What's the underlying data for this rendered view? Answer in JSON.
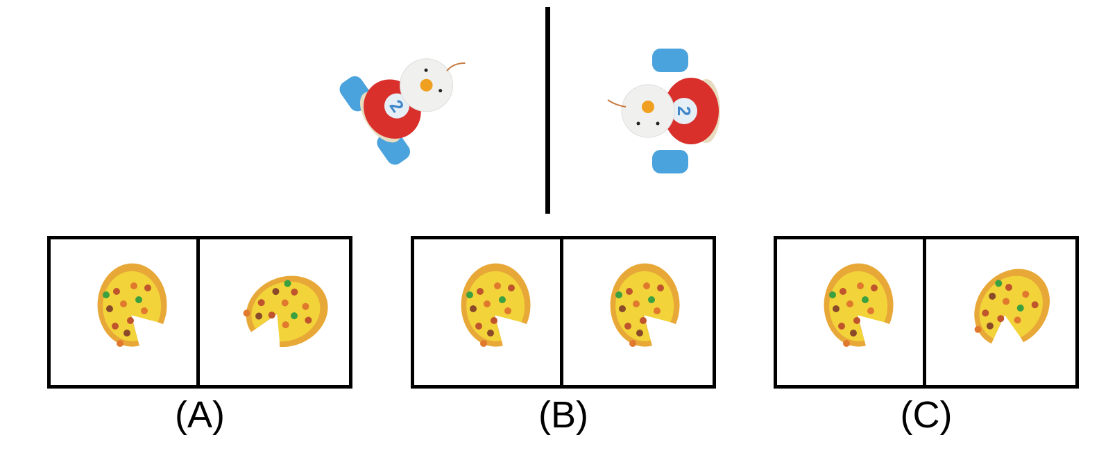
{
  "reference": {
    "left_object": "toy-snowman-car-icon",
    "right_object": "toy-snowman-car-icon",
    "car_number": "2"
  },
  "options": [
    {
      "label": "(A)",
      "left_rotation": 0,
      "right_rotation": 70
    },
    {
      "label": "(B)",
      "left_rotation": 0,
      "right_rotation": 0
    },
    {
      "label": "(C)",
      "left_rotation": 0,
      "right_rotation": 40
    }
  ],
  "colors": {
    "car_body": "#d9302c",
    "wheel": "#4aa3dc",
    "crust": "#e8a838",
    "cheese": "#f2d33a"
  }
}
